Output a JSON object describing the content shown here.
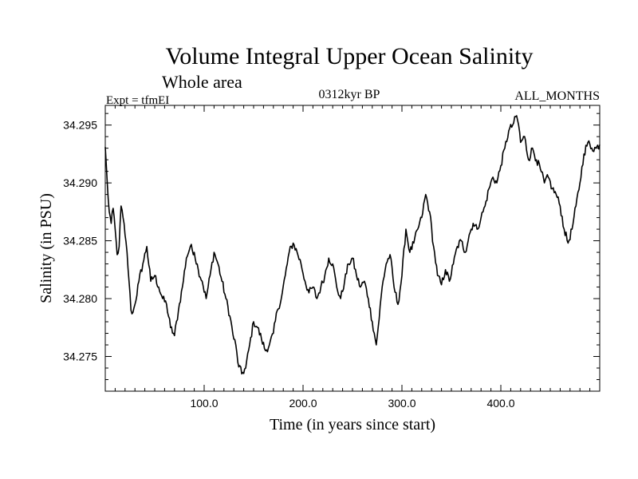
{
  "title": "Volume Integral Upper Ocean Salinity",
  "subtitle": "Whole area",
  "expt_label": "Expt = tfmEI",
  "center_label": "0312kyr BP",
  "right_label": "ALL_MONTHS",
  "chart_data": {
    "type": "line",
    "title": "Volume Integral Upper Ocean Salinity",
    "subtitle": "Whole area",
    "xlabel": "Time (in years since start)",
    "ylabel": "Salinity (in PSU)",
    "xlim": [
      0,
      500
    ],
    "ylim": [
      34.272,
      34.2967
    ],
    "x_ticks": [
      100,
      200,
      300,
      400
    ],
    "x_tick_labels": [
      "100.0",
      "200.0",
      "300.0",
      "400.0"
    ],
    "y_ticks": [
      34.275,
      34.28,
      34.285,
      34.29,
      34.295
    ],
    "y_tick_labels": [
      "34.275",
      "34.280",
      "34.285",
      "34.290",
      "34.295"
    ],
    "grid": false,
    "series": [
      {
        "color": "#000000",
        "x": [
          0,
          2,
          4,
          6,
          8,
          10,
          12,
          14,
          16,
          18,
          20,
          22,
          24,
          26,
          28,
          30,
          34,
          38,
          42,
          46,
          50,
          54,
          58,
          62,
          66,
          70,
          74,
          78,
          82,
          86,
          90,
          94,
          98,
          102,
          106,
          110,
          114,
          118,
          122,
          126,
          130,
          132,
          134,
          138,
          142,
          146,
          150,
          154,
          158,
          162,
          166,
          170,
          174,
          178,
          182,
          186,
          190,
          194,
          198,
          202,
          206,
          210,
          214,
          218,
          222,
          226,
          230,
          234,
          238,
          242,
          246,
          250,
          254,
          258,
          262,
          266,
          270,
          272,
          274,
          276,
          280,
          284,
          288,
          292,
          296,
          300,
          304,
          308,
          312,
          316,
          320,
          324,
          328,
          332,
          336,
          340,
          344,
          348,
          352,
          356,
          360,
          364,
          368,
          372,
          376,
          380,
          384,
          388,
          392,
          396,
          400,
          404,
          408,
          412,
          416,
          418,
          420,
          424,
          428,
          432,
          436,
          440,
          444,
          448,
          452,
          456,
          460,
          464,
          468,
          472,
          476,
          480,
          484,
          488,
          492,
          496,
          500
        ],
        "values": [
          34.2931,
          34.29,
          34.2875,
          34.2865,
          34.2878,
          34.286,
          34.2838,
          34.2845,
          34.288,
          34.287,
          34.2855,
          34.284,
          34.2815,
          34.279,
          34.2788,
          34.2795,
          34.2815,
          34.283,
          34.2845,
          34.2815,
          34.282,
          34.281,
          34.28,
          34.2795,
          34.2775,
          34.2768,
          34.279,
          34.281,
          34.2835,
          34.2845,
          34.284,
          34.2825,
          34.2815,
          34.28,
          34.282,
          34.284,
          34.283,
          34.2815,
          34.28,
          34.2785,
          34.2765,
          34.276,
          34.2745,
          34.2735,
          34.274,
          34.276,
          34.278,
          34.2775,
          34.2765,
          34.2755,
          34.276,
          34.277,
          34.279,
          34.28,
          34.282,
          34.284,
          34.2848,
          34.284,
          34.283,
          34.2815,
          34.2805,
          34.281,
          34.28,
          34.281,
          34.282,
          34.2835,
          34.283,
          34.281,
          34.28,
          34.2815,
          34.283,
          34.2835,
          34.282,
          34.281,
          34.2815,
          34.28,
          34.278,
          34.277,
          34.276,
          34.2775,
          34.281,
          34.283,
          34.2838,
          34.281,
          34.2795,
          34.282,
          34.286,
          34.284,
          34.2848,
          34.286,
          34.287,
          34.289,
          34.2875,
          34.2845,
          34.282,
          34.2812,
          34.2825,
          34.2815,
          34.283,
          34.2845,
          34.285,
          34.284,
          34.2855,
          34.2865,
          34.286,
          34.287,
          34.288,
          34.2895,
          34.2905,
          34.29,
          34.2915,
          34.293,
          34.2945,
          34.295,
          34.2958,
          34.295,
          34.2935,
          34.294,
          34.292,
          34.293,
          34.292,
          34.2912,
          34.29,
          34.2905,
          34.2895,
          34.289,
          34.288,
          34.286,
          34.2848,
          34.286,
          34.288,
          34.29,
          34.2925,
          34.2935,
          34.293,
          34.293,
          34.2933
        ]
      }
    ]
  }
}
